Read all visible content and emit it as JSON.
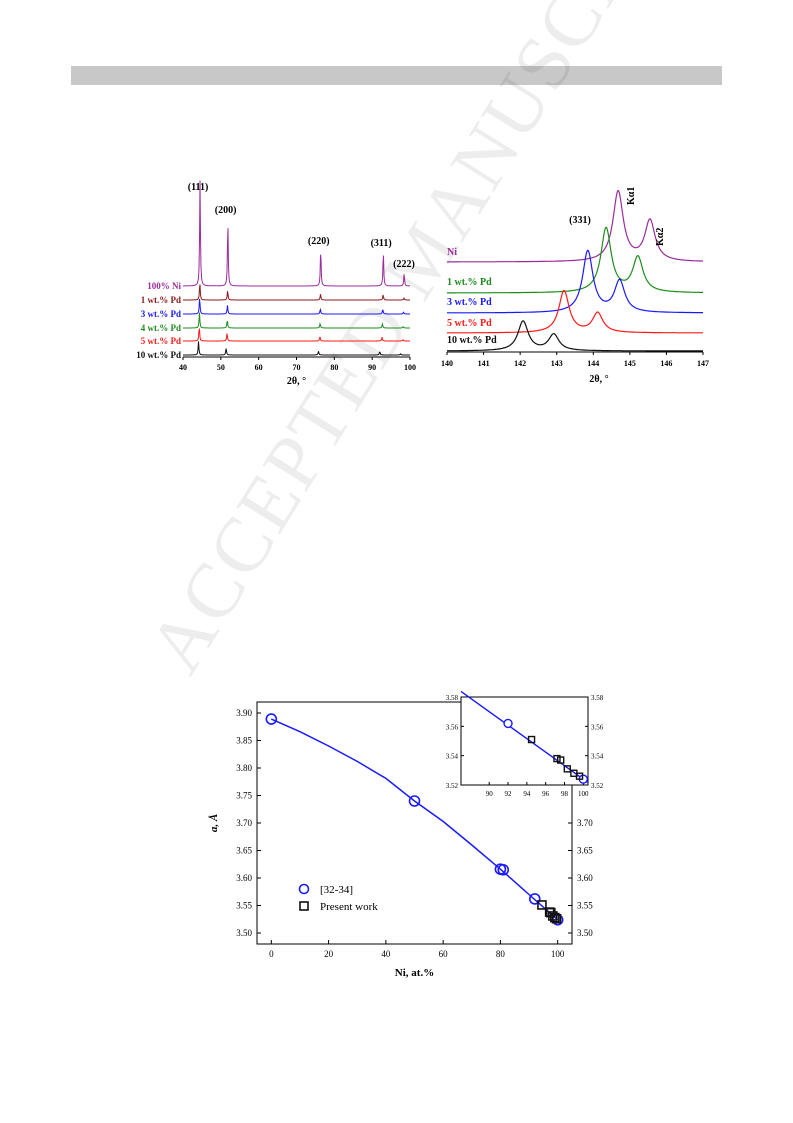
{
  "watermark": "ACCEPTED MANUSCRIPT",
  "chart_data": [
    {
      "type": "line",
      "id": "xrd-full",
      "xlabel": "2θ, °",
      "xlim": [
        40,
        100
      ],
      "xticks": [
        40,
        50,
        60,
        70,
        80,
        90,
        100
      ],
      "peak_labels": [
        {
          "text": "(111)",
          "x": 44.5
        },
        {
          "text": "(200)",
          "x": 51.8
        },
        {
          "text": "(220)",
          "x": 76.4
        },
        {
          "text": "(311)",
          "x": 92.9
        },
        {
          "text": "(222)",
          "x": 98.4
        }
      ],
      "series": [
        {
          "name": "100% Ni",
          "color": "#9b2c9b",
          "peaks": [
            [
              44.5,
              1.0
            ],
            [
              51.85,
              0.62
            ],
            [
              76.4,
              0.36
            ],
            [
              92.95,
              0.33
            ],
            [
              98.45,
              0.12
            ]
          ]
        },
        {
          "name": "1 wt.% Pd",
          "color": "#8b1a1a",
          "peaks": [
            [
              44.45,
              0.9
            ],
            [
              51.8,
              0.5
            ],
            [
              76.35,
              0.3
            ],
            [
              92.9,
              0.28
            ],
            [
              98.4,
              0.1
            ]
          ]
        },
        {
          "name": "3 wt.% Pd",
          "color": "#1a1aff",
          "peaks": [
            [
              44.4,
              0.85
            ],
            [
              51.75,
              0.45
            ],
            [
              76.3,
              0.26
            ],
            [
              92.8,
              0.25
            ],
            [
              98.3,
              0.09
            ]
          ]
        },
        {
          "name": "4 wt.% Pd",
          "color": "#1e8c1e",
          "peaks": [
            [
              44.35,
              0.8
            ],
            [
              51.7,
              0.42
            ],
            [
              76.25,
              0.24
            ],
            [
              92.7,
              0.22
            ],
            [
              98.2,
              0.08
            ]
          ]
        },
        {
          "name": "5 wt.% Pd",
          "color": "#ff1a1a",
          "peaks": [
            [
              44.3,
              0.75
            ],
            [
              51.65,
              0.4
            ],
            [
              76.2,
              0.22
            ],
            [
              92.6,
              0.2
            ],
            [
              98.1,
              0.07
            ]
          ]
        },
        {
          "name": "10 wt.% Pd",
          "color": "#111111",
          "peaks": [
            [
              44.1,
              0.7
            ],
            [
              51.4,
              0.36
            ],
            [
              75.8,
              0.2
            ],
            [
              92.0,
              0.18
            ],
            [
              97.5,
              0.06
            ]
          ]
        }
      ]
    },
    {
      "type": "line",
      "id": "xrd-331",
      "xlabel": "2θ, °",
      "xlim": [
        140,
        147
      ],
      "xticks": [
        140,
        141,
        142,
        143,
        144,
        145,
        146,
        147
      ],
      "peak_label": "(331)",
      "kalpha1_label": "Kα1",
      "kalpha2_label": "Kα2",
      "series": [
        {
          "name": "Ni",
          "color": "#9b2c9b",
          "peaks": [
            [
              144.68,
              1.0
            ],
            [
              145.55,
              0.58
            ]
          ]
        },
        {
          "name": "1 wt.% Pd",
          "color": "#1e8c1e",
          "peaks": [
            [
              144.35,
              0.92
            ],
            [
              145.22,
              0.5
            ]
          ]
        },
        {
          "name": "3 wt.% Pd",
          "color": "#1a1aff",
          "peaks": [
            [
              143.85,
              0.88
            ],
            [
              144.72,
              0.45
            ]
          ]
        },
        {
          "name": "5 wt.% Pd",
          "color": "#ff1a1a",
          "peaks": [
            [
              143.2,
              0.75
            ],
            [
              144.12,
              0.35
            ]
          ]
        },
        {
          "name": "10 wt.% Pd",
          "color": "#111111",
          "peaks": [
            [
              142.08,
              0.82
            ],
            [
              142.92,
              0.45
            ]
          ]
        }
      ]
    },
    {
      "type": "scatter",
      "id": "lattice-parameter",
      "xlabel": "Ni, at.%",
      "ylabel": "a, Å",
      "xlim": [
        -5,
        105
      ],
      "ylim": [
        3.48,
        3.92
      ],
      "xticks": [
        0,
        20,
        40,
        60,
        80,
        100
      ],
      "yticks": [
        3.5,
        3.55,
        3.6,
        3.65,
        3.7,
        3.75,
        3.8,
        3.85,
        3.9
      ],
      "right_yticks": [
        3.5,
        3.55,
        3.6,
        3.65,
        3.7
      ],
      "fit_color": "#1a1aff",
      "fit": [
        [
          0,
          3.889
        ],
        [
          10,
          3.866
        ],
        [
          20,
          3.84
        ],
        [
          30,
          3.812
        ],
        [
          40,
          3.781
        ],
        [
          50,
          3.74
        ],
        [
          60,
          3.703
        ],
        [
          70,
          3.66
        ],
        [
          80,
          3.616
        ],
        [
          90,
          3.57
        ],
        [
          100,
          3.524
        ]
      ],
      "series": [
        {
          "name": "[32-34]",
          "marker": "circle",
          "color": "#1a1aff",
          "points": [
            [
              0,
              3.889
            ],
            [
              50,
              3.74
            ],
            [
              80,
              3.616
            ],
            [
              81,
              3.615
            ],
            [
              92,
              3.562
            ],
            [
              100,
              3.524
            ]
          ]
        },
        {
          "name": "Present work",
          "marker": "square",
          "color": "#111111",
          "points": [
            [
              94.5,
              3.551
            ],
            [
              97.2,
              3.538
            ],
            [
              97.6,
              3.537
            ],
            [
              98.3,
              3.531
            ],
            [
              99.0,
              3.528
            ],
            [
              99.6,
              3.526
            ]
          ]
        }
      ],
      "inset": {
        "xlim": [
          87,
          100.5
        ],
        "ylim": [
          3.52,
          3.58
        ],
        "xticks": [
          90,
          92,
          94,
          96,
          98,
          100
        ],
        "yticks": [
          3.52,
          3.54,
          3.56,
          3.58
        ]
      }
    }
  ]
}
